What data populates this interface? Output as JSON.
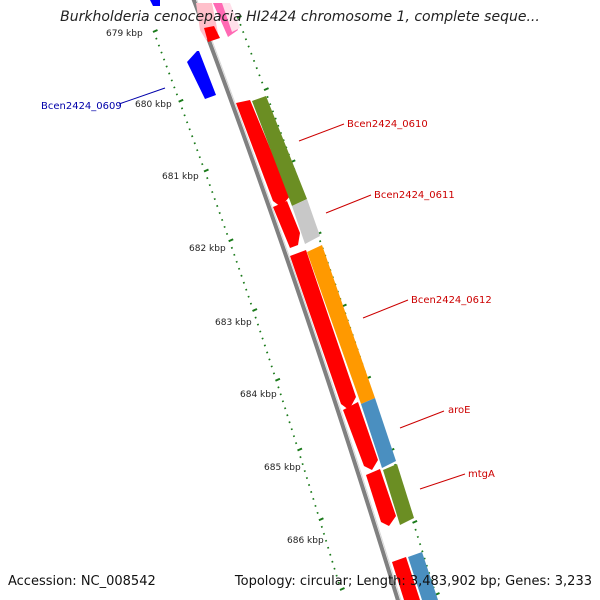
{
  "title": "Burkholderia cenocepacia HI2424 chromosome 1, complete seque...",
  "accession_label": "Accession: NC_008542",
  "topology_label": "Topology: circular; Length: 3,483,902 bp; Genes: 3,233",
  "colors": {
    "backbone": "#808080",
    "tick": "#1a7a1a",
    "tick_label": "#222222",
    "gene_red": "#ff0000",
    "gene_blue": "#0000ff",
    "gene_label_red": "#cc0000",
    "gene_label_blue": "#0000aa",
    "cog_olive": "#6b8e23",
    "cog_grey": "#c8c8c8",
    "cog_orange": "#ff9900",
    "cog_steelblue": "#4a8fc0",
    "cog_pink": "#ff69b4",
    "cog_lightpink": "#ffc0cb"
  },
  "kbp_ticks": [
    "679 kbp",
    "680 kbp",
    "681 kbp",
    "682 kbp",
    "683 kbp",
    "684 kbp",
    "685 kbp",
    "686 kbp"
  ],
  "genes": [
    {
      "name": "Bcen2424_0609",
      "strand": "reverse",
      "color": "blue"
    },
    {
      "name": "Bcen2424_0610",
      "strand": "forward",
      "color": "red",
      "cog": "olive"
    },
    {
      "name": "Bcen2424_0611",
      "strand": "forward",
      "color": "red",
      "cog": "grey"
    },
    {
      "name": "Bcen2424_0612",
      "strand": "forward",
      "color": "red",
      "cog": "orange"
    },
    {
      "name": "aroE",
      "strand": "forward",
      "color": "red",
      "cog": "steelblue"
    },
    {
      "name": "mtgA",
      "strand": "forward",
      "color": "red",
      "cog": "olive"
    }
  ]
}
